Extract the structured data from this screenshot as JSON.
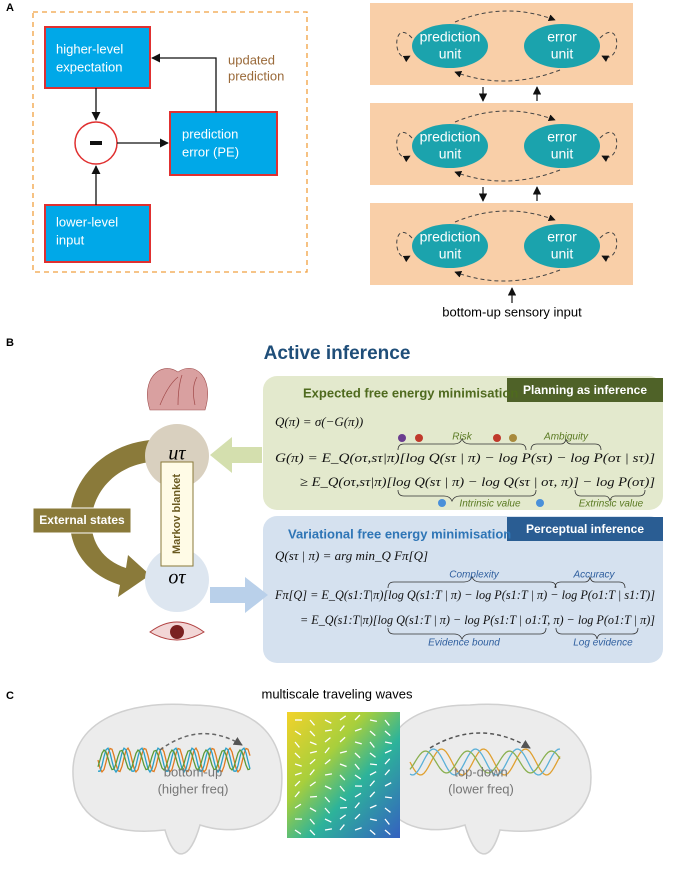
{
  "panel_a": {
    "label": "A",
    "expectation": [
      "higher-level",
      "expectation"
    ],
    "error": [
      "prediction",
      "error (PE)"
    ],
    "input": [
      "lower-level",
      "input"
    ],
    "updated": [
      "updated",
      "prediction"
    ],
    "levels": [
      {
        "prediction": [
          "prediction",
          "unit"
        ],
        "error": [
          "error",
          "unit"
        ]
      },
      {
        "prediction": [
          "prediction",
          "unit"
        ],
        "error": [
          "error",
          "unit"
        ]
      },
      {
        "prediction": [
          "prediction",
          "unit"
        ],
        "error": [
          "error",
          "unit"
        ]
      }
    ],
    "sensory": "bottom-up sensory input"
  },
  "panel_b": {
    "label": "B",
    "title": "Active inference",
    "efe_title": "Expected free energy minimisation",
    "planning_tab": "Planning as inference",
    "vfe_title": "Variational free energy minimisation",
    "perceptual_tab": "Perceptual inference",
    "equations": [
      "Q(π) = σ(−G(π))",
      "G(π) = E_Q(oτ,sτ|π)[log Q(sτ | π) − log P(sτ) − log P(oτ | sτ)]",
      "≥ E_Q(oτ,sτ|π)[log Q(sτ | π) − log Q(sτ | oτ, π)] − log P(oτ)]",
      "Q(sτ | π) = arg min_Q Fπ[Q]",
      "Fπ[Q] = E_Q(s1:T|π)[log Q(s1:T | π) − log P(s1:T | π) − log P(o1:T | s1:T)]",
      "= E_Q(s1:T|π)[log Q(s1:T | π) − log P(s1:T | o1:T, π) − log P(o1:T | π)]"
    ],
    "risk": "Risk",
    "ambiguity": "Ambiguity",
    "intrinsic": "Intrinsic value",
    "extrinsic": "Extrinsic value",
    "complexity": "Complexity",
    "accuracy": "Accuracy",
    "evidence_bound": "Evidence bound",
    "log_evidence": "Log evidence",
    "external": "External states",
    "markov": "Markov blanket",
    "u": "uτ",
    "o": "oτ"
  },
  "panel_c": {
    "label": "C",
    "title": "multiscale traveling waves",
    "bottom_up": [
      "bottom-up",
      "(higher freq)"
    ],
    "top_down": [
      "top-down",
      "(lower freq)"
    ]
  }
}
